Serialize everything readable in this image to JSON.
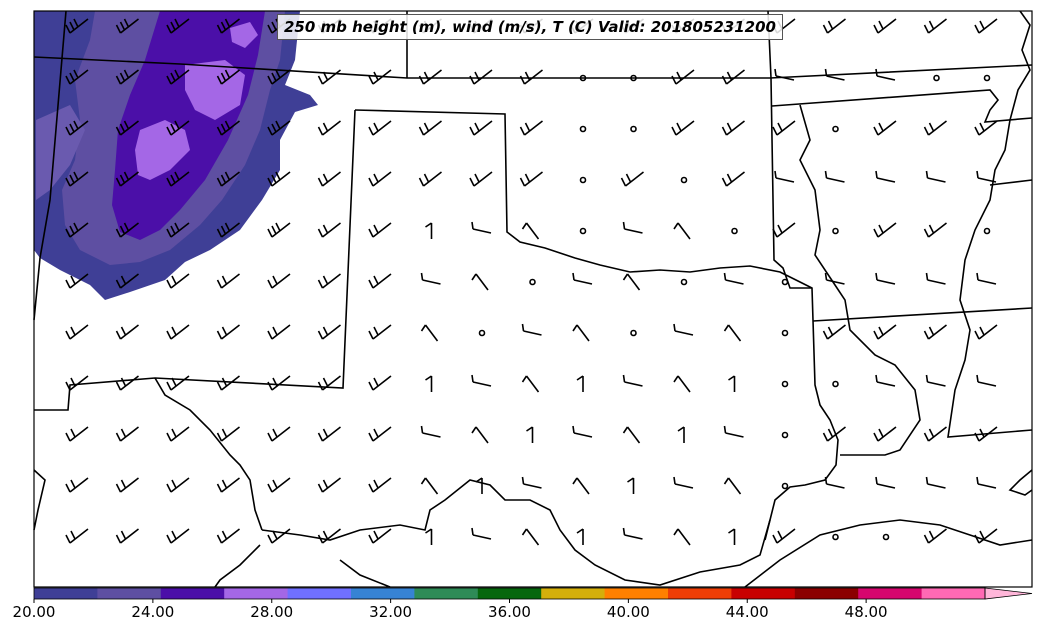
{
  "title": "250 mb height (m), wind (m/s), T (C) Valid: 201805231200",
  "colorbar": {
    "colors": [
      "#3f3f96",
      "#5e4fa2",
      "#4b0fa8",
      "#a467e6",
      "#7070ff",
      "#3783d4",
      "#2e8b57",
      "#06670d",
      "#d4af0b",
      "#ff8000",
      "#ee3e06",
      "#c80000",
      "#8b0000",
      "#d6066e",
      "#ff69b4"
    ],
    "extend_color": "#ffb6d9",
    "range": [
      20,
      52
    ],
    "tick_values": [
      20,
      24,
      28,
      32,
      36,
      40,
      44,
      48
    ],
    "tick_labels": [
      "20.00",
      "24.00",
      "28.00",
      "32.00",
      "36.00",
      "40.00",
      "44.00",
      "48.00"
    ]
  },
  "temperature_shading": {
    "colors": [
      "#3f3f96",
      "#5e4fa2",
      "#4b0fa8",
      "#a467e6"
    ]
  }
}
